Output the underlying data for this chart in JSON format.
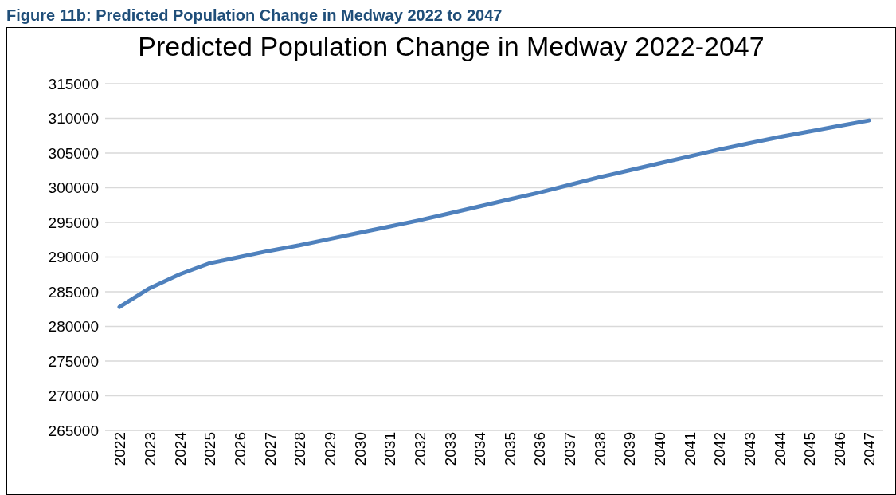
{
  "chart_data": {
    "type": "line",
    "title": "Predicted Population Change in Medway 2022-2047",
    "annotations": [
      "Figure 11b: Predicted Population Change in Medway 2022 to 2047"
    ],
    "categories": [
      "2022",
      "2023",
      "2024",
      "2025",
      "2026",
      "2027",
      "2028",
      "2029",
      "2030",
      "2031",
      "2032",
      "2033",
      "2034",
      "2035",
      "2036",
      "2037",
      "2038",
      "2039",
      "2040",
      "2041",
      "2042",
      "2043",
      "2044",
      "2045",
      "2046",
      "2047"
    ],
    "series": [
      {
        "color": "#4f81bd",
        "values": [
          282800,
          285500,
          287500,
          289100,
          290000,
          290900,
          291700,
          292600,
          293500,
          294400,
          295300,
          296300,
          297300,
          298300,
          299300,
          300400,
          301500,
          302500,
          303500,
          304500,
          305500,
          306400,
          307300,
          308100,
          308900,
          309700
        ]
      }
    ],
    "ylim": [
      265000,
      315000
    ],
    "yticks": [
      265000,
      270000,
      275000,
      280000,
      285000,
      290000,
      295000,
      300000,
      305000,
      310000,
      315000
    ],
    "grid": "y",
    "legend": false,
    "marker": "none",
    "line_style": "solid"
  }
}
